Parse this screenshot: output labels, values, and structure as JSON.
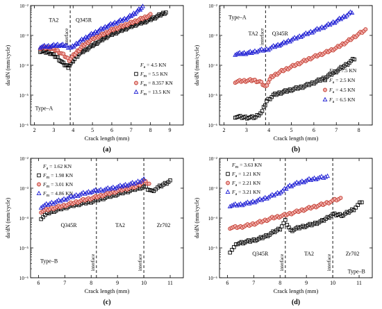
{
  "chart_data": [
    {
      "type": "scatter",
      "panel_label": "(a)",
      "xlabel": "Crack length (mm)",
      "ylabel": "da/dN (mm/cycle)",
      "xlim": [
        1.8,
        9.7
      ],
      "ylim_exp": [
        -6,
        -2
      ],
      "log_y": true,
      "x_ticks": [
        "2",
        "3",
        "4",
        "5",
        "6",
        "7",
        "8",
        "9"
      ],
      "y_ticks": [
        "10⁻⁶",
        "10⁻⁵",
        "10⁻⁴",
        "10⁻³",
        "10⁻²"
      ],
      "vlines": [
        {
          "x": 3.85,
          "label": "interface"
        }
      ],
      "region_labels": [
        {
          "text": "TA2",
          "x": 3.0,
          "yexp": -2.55
        },
        {
          "text": "Q345R",
          "x": 4.55,
          "yexp": -2.55
        },
        {
          "text": "Type–A",
          "x": 2.5,
          "yexp": -5.5
        }
      ],
      "legend_header": {
        "sym": "F",
        "sub": "a",
        "text": " = 4.5 KN"
      },
      "legend_sym": "F",
      "legend_sub": "m",
      "legend_position": "center-right",
      "series": [
        {
          "name": " = 5.5 KN",
          "marker": "square",
          "color": "#000000",
          "pts": [
            [
              2.3,
              -3.52
            ],
            [
              2.8,
              -3.58
            ],
            [
              3.2,
              -3.75
            ],
            [
              3.5,
              -3.95
            ],
            [
              3.75,
              -4.05
            ],
            [
              4.0,
              -3.85
            ],
            [
              4.3,
              -3.62
            ],
            [
              4.8,
              -3.42
            ],
            [
              5.3,
              -3.22
            ],
            [
              5.8,
              -3.02
            ],
            [
              6.3,
              -2.88
            ],
            [
              6.8,
              -2.75
            ],
            [
              7.3,
              -2.62
            ],
            [
              7.8,
              -2.52
            ],
            [
              8.3,
              -2.38
            ],
            [
              8.8,
              -2.22
            ]
          ]
        },
        {
          "name": " = 8.357 KN",
          "marker": "circle",
          "color": "#c0392b",
          "pts": [
            [
              2.3,
              -3.42
            ],
            [
              2.8,
              -3.42
            ],
            [
              3.2,
              -3.52
            ],
            [
              3.5,
              -3.65
            ],
            [
              3.8,
              -3.82
            ],
            [
              4.1,
              -3.62
            ],
            [
              4.5,
              -3.35
            ],
            [
              5.0,
              -3.12
            ],
            [
              5.5,
              -2.98
            ],
            [
              6.0,
              -2.82
            ],
            [
              6.5,
              -2.7
            ],
            [
              7.0,
              -2.58
            ],
            [
              7.5,
              -2.45
            ],
            [
              8.0,
              -2.32
            ]
          ]
        },
        {
          "name": " = 13.5 KN",
          "marker": "triangle",
          "color": "#1f1fd4",
          "pts": [
            [
              2.3,
              -3.38
            ],
            [
              2.8,
              -3.36
            ],
            [
              3.2,
              -3.32
            ],
            [
              3.6,
              -3.34
            ],
            [
              3.9,
              -3.42
            ],
            [
              4.3,
              -3.22
            ],
            [
              4.8,
              -3.02
            ],
            [
              5.3,
              -2.85
            ],
            [
              5.8,
              -2.68
            ],
            [
              6.3,
              -2.55
            ],
            [
              6.8,
              -2.42
            ],
            [
              7.2,
              -2.25
            ],
            [
              7.6,
              -2.05
            ]
          ]
        }
      ]
    },
    {
      "type": "scatter",
      "panel_label": "(b)",
      "xlabel": "Crack length (mm)",
      "ylabel": "da/dN (mm/cycle)",
      "xlim": [
        1.8,
        8.6
      ],
      "ylim_exp": [
        -6,
        -2
      ],
      "log_y": true,
      "x_ticks": [
        "2",
        "3",
        "4",
        "5",
        "6",
        "7",
        "8"
      ],
      "y_ticks": [
        "10⁻⁶",
        "10⁻⁵",
        "10⁻⁴",
        "10⁻³",
        "10⁻²"
      ],
      "vlines": [
        {
          "x": 3.85,
          "label": "interface"
        }
      ],
      "region_labels": [
        {
          "text": "TA2",
          "x": 3.3,
          "yexp": -3.0
        },
        {
          "text": "Q345R",
          "x": 4.5,
          "yexp": -3.0
        },
        {
          "text": "Type–A",
          "x": 2.6,
          "yexp": -2.45
        }
      ],
      "legend_header": {
        "sym": "F",
        "sub": "m",
        "text": " = 7.5 KN"
      },
      "legend_sym": "F",
      "legend_sub": "a",
      "legend_position": "lower-right",
      "series": [
        {
          "name": " = 2.5 KN",
          "marker": "square",
          "color": "#000000",
          "pts": [
            [
              2.5,
              -5.72
            ],
            [
              2.8,
              -5.74
            ],
            [
              3.1,
              -5.75
            ],
            [
              3.4,
              -5.74
            ],
            [
              3.7,
              -5.55
            ],
            [
              3.9,
              -5.2
            ],
            [
              4.2,
              -5.0
            ],
            [
              4.6,
              -4.9
            ],
            [
              5.0,
              -4.82
            ],
            [
              5.5,
              -4.72
            ],
            [
              6.0,
              -4.58
            ],
            [
              6.5,
              -4.42
            ],
            [
              7.0,
              -4.2
            ],
            [
              7.5,
              -3.95
            ],
            [
              7.8,
              -3.78
            ]
          ]
        },
        {
          "name": " = 4.5 KN",
          "marker": "circle",
          "color": "#c0392b",
          "pts": [
            [
              2.5,
              -4.55
            ],
            [
              2.9,
              -4.52
            ],
            [
              3.3,
              -4.5
            ],
            [
              3.6,
              -4.55
            ],
            [
              3.85,
              -4.72
            ],
            [
              4.1,
              -4.4
            ],
            [
              4.5,
              -4.22
            ],
            [
              5.0,
              -4.05
            ],
            [
              5.5,
              -3.88
            ],
            [
              6.0,
              -3.72
            ],
            [
              6.5,
              -3.58
            ],
            [
              7.0,
              -3.42
            ],
            [
              7.5,
              -3.2
            ],
            [
              8.0,
              -2.95
            ],
            [
              8.3,
              -2.82
            ]
          ]
        },
        {
          "name": " = 6.5 KN",
          "marker": "triangle",
          "color": "#1f1fd4",
          "pts": [
            [
              2.5,
              -3.62
            ],
            [
              2.9,
              -3.6
            ],
            [
              3.3,
              -3.56
            ],
            [
              3.6,
              -3.5
            ],
            [
              3.9,
              -3.48
            ],
            [
              4.2,
              -3.38
            ],
            [
              4.6,
              -3.28
            ],
            [
              5.0,
              -3.15
            ],
            [
              5.5,
              -3.0
            ],
            [
              6.0,
              -2.85
            ],
            [
              6.5,
              -2.7
            ],
            [
              7.0,
              -2.52
            ],
            [
              7.4,
              -2.35
            ],
            [
              7.7,
              -2.22
            ]
          ]
        }
      ]
    },
    {
      "type": "scatter",
      "panel_label": "(c)",
      "xlabel": "Crack length (mm)",
      "ylabel": "da/dN (mm/cycle)",
      "xlim": [
        5.7,
        11.5
      ],
      "ylim_exp": [
        -6,
        -2
      ],
      "log_y": true,
      "x_ticks": [
        "6",
        "7",
        "8",
        "9",
        "10",
        "11"
      ],
      "y_ticks": [
        "10⁻⁶",
        "10⁻⁵",
        "10⁻⁴",
        "10⁻³",
        "10⁻²"
      ],
      "vlines": [
        {
          "x": 8.2,
          "label": "interface"
        },
        {
          "x": 10.0,
          "label": "interface"
        }
      ],
      "region_labels": [
        {
          "text": "Q345R",
          "x": 7.15,
          "yexp": -4.3
        },
        {
          "text": "TA2",
          "x": 9.1,
          "yexp": -4.3
        },
        {
          "text": "Zr702",
          "x": 10.75,
          "yexp": -4.3
        },
        {
          "text": "Type–B",
          "x": 6.4,
          "yexp": -5.5
        }
      ],
      "legend_header": {
        "sym": "F",
        "sub": "a",
        "text": " = 1.62 KN"
      },
      "legend_sym": "F",
      "legend_sub": "m",
      "legend_position": "top-left",
      "series": [
        {
          "name": " = 1.98 KN",
          "marker": "square",
          "color": "#000000",
          "pts": [
            [
              6.1,
              -4.0
            ],
            [
              6.4,
              -3.82
            ],
            [
              6.8,
              -3.7
            ],
            [
              7.2,
              -3.6
            ],
            [
              7.6,
              -3.52
            ],
            [
              8.0,
              -3.45
            ],
            [
              8.4,
              -3.35
            ],
            [
              8.8,
              -3.25
            ],
            [
              9.2,
              -3.15
            ],
            [
              9.6,
              -3.05
            ],
            [
              10.0,
              -2.95
            ],
            [
              10.3,
              -3.1
            ],
            [
              10.6,
              -2.95
            ],
            [
              11.0,
              -2.75
            ]
          ]
        },
        {
          "name": " = 3.01 KN",
          "marker": "circle",
          "color": "#c0392b",
          "pts": [
            [
              6.1,
              -3.78
            ],
            [
              6.5,
              -3.68
            ],
            [
              6.9,
              -3.6
            ],
            [
              7.3,
              -3.5
            ],
            [
              7.7,
              -3.4
            ],
            [
              8.1,
              -3.32
            ],
            [
              8.5,
              -3.22
            ],
            [
              8.9,
              -3.12
            ],
            [
              9.3,
              -3.02
            ],
            [
              9.7,
              -2.95
            ],
            [
              10.0,
              -2.78
            ],
            [
              10.2,
              -2.85
            ]
          ]
        },
        {
          "name": " = 4.86 KN",
          "marker": "triangle",
          "color": "#1f1fd4",
          "pts": [
            [
              6.1,
              -3.62
            ],
            [
              6.5,
              -3.5
            ],
            [
              6.9,
              -3.4
            ],
            [
              7.3,
              -3.28
            ],
            [
              7.7,
              -3.18
            ],
            [
              8.1,
              -3.1
            ],
            [
              8.5,
              -3.05
            ],
            [
              8.9,
              -2.98
            ],
            [
              9.3,
              -2.9
            ],
            [
              9.7,
              -2.82
            ],
            [
              10.0,
              -2.7
            ]
          ]
        }
      ]
    },
    {
      "type": "scatter",
      "panel_label": "(d)",
      "xlabel": "Crack length (mm)",
      "ylabel": "da/dN (mm/cycle)",
      "xlim": [
        5.7,
        11.5
      ],
      "ylim_exp": [
        -6,
        -2
      ],
      "log_y": true,
      "x_ticks": [
        "6",
        "7",
        "8",
        "9",
        "10",
        "11"
      ],
      "y_ticks": [
        "10⁻⁶",
        "10⁻⁵",
        "10⁻⁴",
        "10⁻³",
        "10⁻²"
      ],
      "vlines": [
        {
          "x": 8.2,
          "label": "interface"
        },
        {
          "x": 10.0,
          "label": "interface"
        }
      ],
      "region_labels": [
        {
          "text": "Q345R",
          "x": 7.25,
          "yexp": -5.25
        },
        {
          "text": "TA2",
          "x": 9.1,
          "yexp": -5.25
        },
        {
          "text": "Zr702",
          "x": 10.75,
          "yexp": -5.25
        },
        {
          "text": "Type–B",
          "x": 10.9,
          "yexp": -5.85
        }
      ],
      "legend_header": {
        "sym": "F",
        "sub": "m",
        "text": " = 3.63 KN"
      },
      "legend_sym": "F",
      "legend_sub": "a",
      "legend_position": "top-left",
      "series": [
        {
          "name": " = 1.21 KN",
          "marker": "square",
          "color": "#000000",
          "pts": [
            [
              6.1,
              -5.12
            ],
            [
              6.4,
              -4.85
            ],
            [
              6.8,
              -4.78
            ],
            [
              7.2,
              -4.7
            ],
            [
              7.6,
              -4.55
            ],
            [
              8.0,
              -4.35
            ],
            [
              8.2,
              -4.1
            ],
            [
              8.4,
              -4.42
            ],
            [
              8.8,
              -4.3
            ],
            [
              9.2,
              -4.22
            ],
            [
              9.6,
              -4.1
            ],
            [
              10.0,
              -3.88
            ],
            [
              10.4,
              -3.9
            ],
            [
              10.8,
              -3.7
            ],
            [
              11.1,
              -3.45
            ]
          ]
        },
        {
          "name": " = 2.21 KN",
          "marker": "circle",
          "color": "#c0392b",
          "pts": [
            [
              6.1,
              -4.32
            ],
            [
              6.5,
              -4.3
            ],
            [
              6.9,
              -4.22
            ],
            [
              7.3,
              -4.12
            ],
            [
              7.7,
              -4.0
            ],
            [
              8.1,
              -3.92
            ],
            [
              8.5,
              -3.82
            ],
            [
              8.9,
              -3.72
            ],
            [
              9.3,
              -3.62
            ],
            [
              9.7,
              -3.52
            ],
            [
              10.0,
              -3.42
            ],
            [
              10.3,
              -3.35
            ]
          ]
        },
        {
          "name": " = 3.21 KN",
          "marker": "triangle",
          "color": "#1f1fd4",
          "pts": [
            [
              6.1,
              -3.58
            ],
            [
              6.5,
              -3.55
            ],
            [
              6.9,
              -3.48
            ],
            [
              7.3,
              -3.38
            ],
            [
              7.7,
              -3.25
            ],
            [
              8.1,
              -3.1
            ],
            [
              8.3,
              -2.95
            ],
            [
              8.7,
              -2.82
            ],
            [
              9.1,
              -2.72
            ],
            [
              9.5,
              -2.65
            ],
            [
              9.8,
              -2.62
            ]
          ]
        }
      ]
    }
  ]
}
